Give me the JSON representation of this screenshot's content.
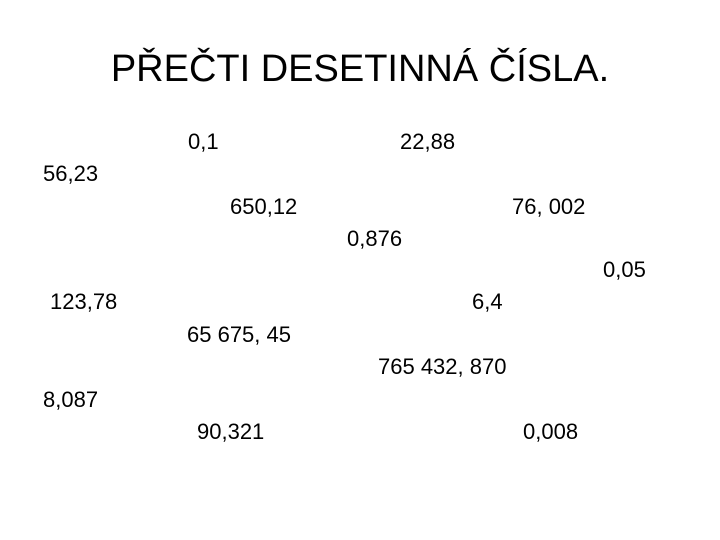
{
  "title": "PŘEČTI DESETINNÁ ČÍSLA.",
  "numbers": [
    "0,1",
    "22,88",
    "56,23",
    "650,12",
    "76, 002",
    "0,876",
    "0,05",
    "123,78",
    "6,4",
    "65 675, 45",
    "765 432, 870",
    "8,087",
    "90,321",
    "0,008"
  ]
}
